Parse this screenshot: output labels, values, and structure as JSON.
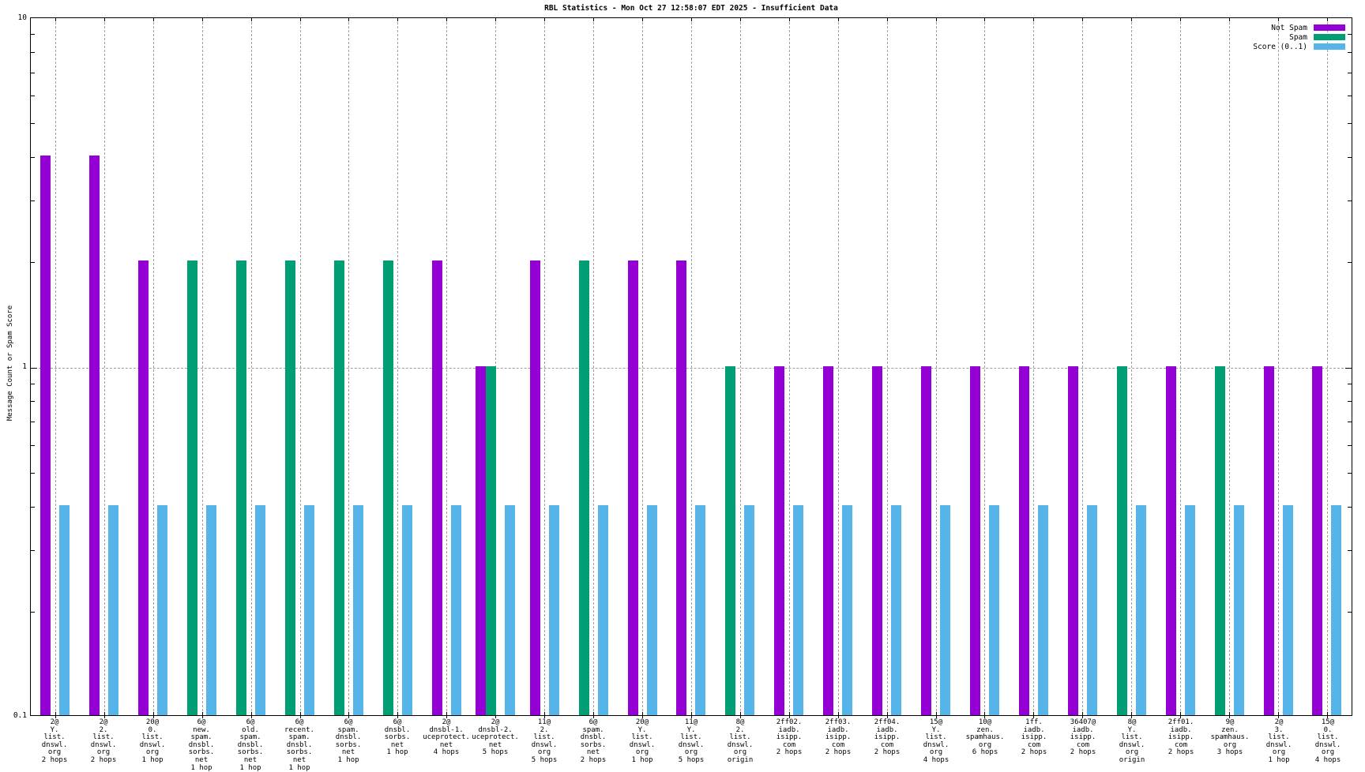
{
  "title": "RBL Statistics - Mon Oct 27 12:58:07 EDT 2025 - Insufficient Data",
  "y_axis": {
    "label": "Message Count or Spam Score",
    "scale": "log",
    "min": 0.1,
    "max": 10,
    "tick_labels": [
      "10",
      "1",
      "0.1"
    ]
  },
  "legend": [
    {
      "label": "Not Spam",
      "color": "#9400d3"
    },
    {
      "label": "Spam",
      "color": "#009e73"
    },
    {
      "label": "Score (0..1)",
      "color": "#56b4e9"
    }
  ],
  "chart_data": {
    "type": "bar",
    "title": "RBL Statistics - Mon Oct 27 12:58:07 EDT 2025 - Insufficient Data",
    "ylabel": "Message Count or Spam Score",
    "yscale": "log",
    "ylim": [
      0.1,
      10
    ],
    "grid": {
      "horizontal_dashed_at": 1,
      "vertical_dashed": "one per category"
    },
    "legend_position": "top-right",
    "series_names": [
      "Not Spam",
      "Spam",
      "Score (0..1)"
    ],
    "groups": [
      {
        "label_lines": [
          "2@",
          "Y.",
          "list.",
          "dnswl.",
          "org",
          "2 hops"
        ],
        "not_spam": 4,
        "spam": null,
        "score": 0.4
      },
      {
        "label_lines": [
          "2@",
          "2.",
          "list.",
          "dnswl.",
          "org",
          "2 hops"
        ],
        "not_spam": 4,
        "spam": null,
        "score": 0.4
      },
      {
        "label_lines": [
          "20@",
          "0.",
          "list.",
          "dnswl.",
          "org",
          "1 hop"
        ],
        "not_spam": 2,
        "spam": null,
        "score": 0.4
      },
      {
        "label_lines": [
          "6@",
          "new.",
          "spam.",
          "dnsbl.",
          "sorbs.",
          "net",
          "1 hop"
        ],
        "not_spam": null,
        "spam": 2,
        "score": 0.4
      },
      {
        "label_lines": [
          "6@",
          "old.",
          "spam.",
          "dnsbl.",
          "sorbs.",
          "net",
          "1 hop"
        ],
        "not_spam": null,
        "spam": 2,
        "score": 0.4
      },
      {
        "label_lines": [
          "6@",
          "recent.",
          "spam.",
          "dnsbl.",
          "sorbs.",
          "net",
          "1 hop"
        ],
        "not_spam": null,
        "spam": 2,
        "score": 0.4
      },
      {
        "label_lines": [
          "6@",
          "spam.",
          "dnsbl.",
          "sorbs.",
          "net",
          "1 hop"
        ],
        "not_spam": null,
        "spam": 2,
        "score": 0.4
      },
      {
        "label_lines": [
          "6@",
          "dnsbl.",
          "sorbs.",
          "net",
          "1 hop"
        ],
        "not_spam": null,
        "spam": 2,
        "score": 0.4
      },
      {
        "label_lines": [
          "2@",
          "dnsbl-1.",
          "uceprotect.",
          "net",
          "4 hops"
        ],
        "not_spam": 2,
        "spam": null,
        "score": 0.4
      },
      {
        "label_lines": [
          "2@",
          "dnsbl-2.",
          "uceprotect.",
          "net",
          "5 hops"
        ],
        "not_spam": 1,
        "spam": 1,
        "score": 0.4
      },
      {
        "label_lines": [
          "11@",
          "2.",
          "list.",
          "dnswl.",
          "org",
          "5 hops"
        ],
        "not_spam": 2,
        "spam": null,
        "score": 0.4
      },
      {
        "label_lines": [
          "6@",
          "spam.",
          "dnsbl.",
          "sorbs.",
          "net",
          "2 hops"
        ],
        "not_spam": null,
        "spam": 2,
        "score": 0.4
      },
      {
        "label_lines": [
          "20@",
          "Y.",
          "list.",
          "dnswl.",
          "org",
          "1 hop"
        ],
        "not_spam": 2,
        "spam": null,
        "score": 0.4
      },
      {
        "label_lines": [
          "11@",
          "Y.",
          "list.",
          "dnswl.",
          "org",
          "5 hops"
        ],
        "not_spam": 2,
        "spam": null,
        "score": 0.4
      },
      {
        "label_lines": [
          "8@",
          "2.",
          "list.",
          "dnswl.",
          "org",
          "origin"
        ],
        "not_spam": null,
        "spam": 1,
        "score": 0.4
      },
      {
        "label_lines": [
          "2ff02.",
          "iadb.",
          "isipp.",
          "com",
          "2 hops"
        ],
        "not_spam": 1,
        "spam": null,
        "score": 0.4
      },
      {
        "label_lines": [
          "2ff03.",
          "iadb.",
          "isipp.",
          "com",
          "2 hops"
        ],
        "not_spam": 1,
        "spam": null,
        "score": 0.4
      },
      {
        "label_lines": [
          "2ff04.",
          "iadb.",
          "isipp.",
          "com",
          "2 hops"
        ],
        "not_spam": 1,
        "spam": null,
        "score": 0.4
      },
      {
        "label_lines": [
          "15@",
          "Y.",
          "list.",
          "dnswl.",
          "org",
          "4 hops"
        ],
        "not_spam": 1,
        "spam": null,
        "score": 0.4
      },
      {
        "label_lines": [
          "10@",
          "zen.",
          "spamhaus.",
          "org",
          "6 hops"
        ],
        "not_spam": 1,
        "spam": null,
        "score": 0.4
      },
      {
        "label_lines": [
          "1ff.",
          "iadb.",
          "isipp.",
          "com",
          "2 hops"
        ],
        "not_spam": 1,
        "spam": null,
        "score": 0.4
      },
      {
        "label_lines": [
          "36407@",
          "iadb.",
          "isipp.",
          "com",
          "2 hops"
        ],
        "not_spam": 1,
        "spam": null,
        "score": 0.4
      },
      {
        "label_lines": [
          "8@",
          "Y.",
          "list.",
          "dnswl.",
          "org",
          "origin"
        ],
        "not_spam": null,
        "spam": 1,
        "score": 0.4
      },
      {
        "label_lines": [
          "2ff01.",
          "iadb.",
          "isipp.",
          "com",
          "2 hops"
        ],
        "not_spam": 1,
        "spam": null,
        "score": 0.4
      },
      {
        "label_lines": [
          "9@",
          "zen.",
          "spamhaus.",
          "org",
          "3 hops"
        ],
        "not_spam": null,
        "spam": 1,
        "score": 0.4
      },
      {
        "label_lines": [
          "2@",
          "3.",
          "list.",
          "dnswl.",
          "org",
          "1 hop"
        ],
        "not_spam": 1,
        "spam": null,
        "score": 0.4
      },
      {
        "label_lines": [
          "15@",
          "0.",
          "list.",
          "dnswl.",
          "org",
          "4 hops"
        ],
        "not_spam": 1,
        "spam": null,
        "score": 0.4
      }
    ]
  }
}
